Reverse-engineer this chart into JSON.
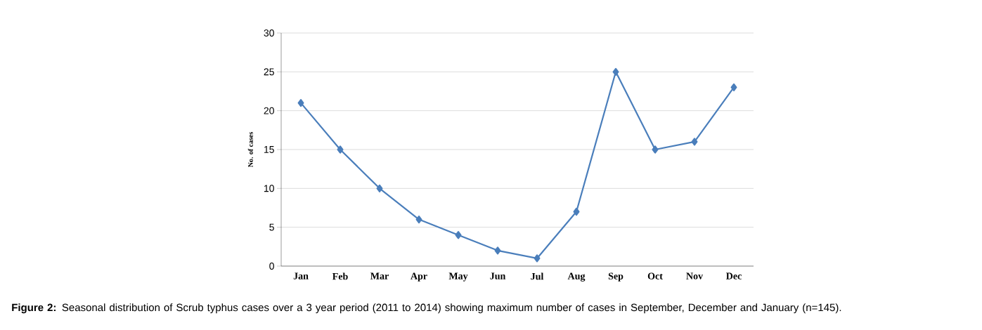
{
  "chart_data": {
    "type": "line",
    "categories": [
      "Jan",
      "Feb",
      "Mar",
      "Apr",
      "May",
      "Jun",
      "Jul",
      "Aug",
      "Sep",
      "Oct",
      "Nov",
      "Dec"
    ],
    "series": [
      {
        "color": "#4a7ebb",
        "values": [
          21,
          15,
          10,
          6,
          4,
          2,
          1,
          7,
          25,
          15,
          16,
          23
        ]
      }
    ],
    "ylabel": "No. of cases",
    "ylim": [
      0,
      30
    ],
    "yticks": [
      0,
      5,
      10,
      15,
      20,
      25,
      30
    ],
    "grid": "y",
    "marker": "diamond",
    "line_style": "solid",
    "annotations": [
      "**Figure 2:** Seasonal distribution of Scrub typhus cases over a 3 year period (2011 to 2014) showing maximum number of cases in September, December and January (n=145)."
    ]
  }
}
